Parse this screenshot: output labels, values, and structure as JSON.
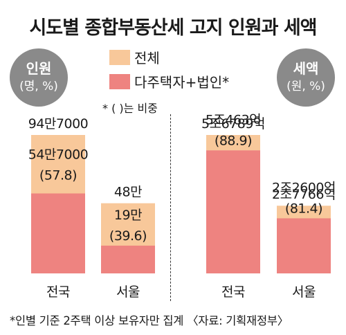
{
  "title": "시도별 종합부동산세 고지 인원과 세액",
  "colors": {
    "total": "#f8c89a",
    "multi": "#ee8380",
    "badge": "#8a8a8a"
  },
  "legend": [
    {
      "label": "전체",
      "color": "#f8c89a"
    },
    {
      "label": "다주택자+법인*",
      "color": "#ee8380"
    }
  ],
  "note": "* (  )는 비중",
  "footer": "*인별 기준 2주택 이상 보유자만 집계 〈자료: 기획재정부〉",
  "chart_data": [
    {
      "type": "bar",
      "badge": {
        "line1": "인원",
        "line2": "(명, %)"
      },
      "categories": [
        "전국",
        "서울"
      ],
      "series": [
        {
          "name": "전체",
          "values": [
            947000,
            480000
          ],
          "labels": [
            "94만7000",
            "48만"
          ]
        },
        {
          "name": "다주택자+법인*",
          "values": [
            547000,
            190000
          ],
          "labels": [
            "54만7000",
            "19만"
          ],
          "shares": [
            "(57.8)",
            "(39.6)"
          ]
        }
      ]
    },
    {
      "type": "bar",
      "badge": {
        "line1": "세액",
        "line2": "(원, %)"
      },
      "categories": [
        "전국",
        "서울"
      ],
      "series": [
        {
          "name": "전체",
          "values": [
            56789,
            27766
          ],
          "labels": [
            "5조6789억",
            "2조7766억"
          ]
        },
        {
          "name": "다주택자+법인*",
          "values": [
            50463,
            22600
          ],
          "labels": [
            "5조463억",
            "2조2600억"
          ],
          "shares": [
            "(88.9)",
            "(81.4)"
          ]
        }
      ]
    }
  ]
}
